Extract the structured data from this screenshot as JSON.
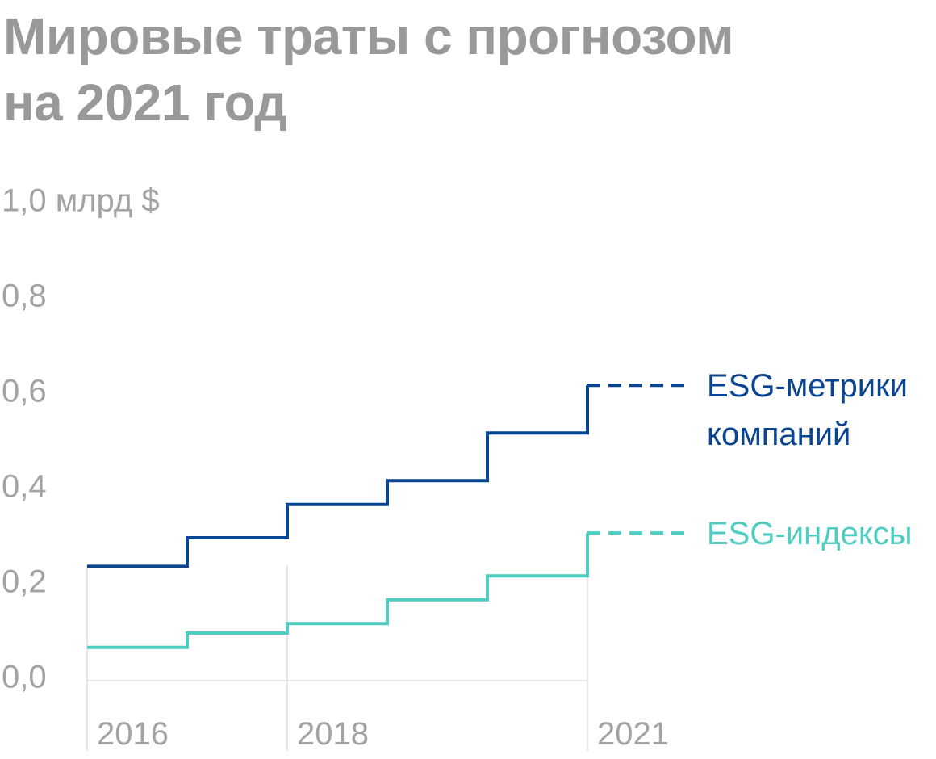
{
  "title": {
    "line1": "Мировые траты с прогнозом",
    "line2": "на 2021 год"
  },
  "chart_data": {
    "type": "line",
    "step": true,
    "title": "Мировые траты с прогнозом на 2021 год",
    "ylabel": "млрд $",
    "ylim": [
      0,
      1.0
    ],
    "xlim": [
      2016,
      2021
    ],
    "y_ticks": [
      "0,0",
      "0,2",
      "0,4",
      "0,6",
      "0,8",
      "1,0 млрд $"
    ],
    "x_ticks": [
      "2016",
      "2018",
      "2021"
    ],
    "x": [
      2016,
      2017,
      2018,
      2019,
      2020,
      2021
    ],
    "forecast_from": 2021,
    "series": [
      {
        "name": "ESG-метрики компаний",
        "name_lines": [
          "ESG-метрики",
          "компаний"
        ],
        "color": "#0a4592",
        "values": [
          0.24,
          0.3,
          0.37,
          0.42,
          0.52,
          0.62
        ]
      },
      {
        "name": "ESG-индексы",
        "name_lines": [
          "ESG-индексы"
        ],
        "color": "#4ecdc0",
        "values": [
          0.07,
          0.1,
          0.12,
          0.17,
          0.22,
          0.31
        ]
      }
    ],
    "grid": {
      "horizontal": false,
      "vertical": "at x-ticks"
    },
    "colors": {
      "axis": "#dddddd",
      "tick_text": "#a3a3a3",
      "title": "#999999"
    }
  }
}
